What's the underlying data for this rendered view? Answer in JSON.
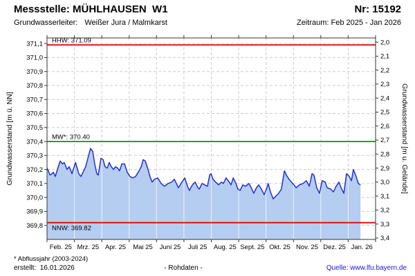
{
  "header": {
    "title": "Messstelle: MÜHLHAUSEN  W1",
    "station_number": "Nr: 15192",
    "aquifer_label": "Grundwasserleiter:",
    "aquifer_value": "Weißer Jura / Malmkarst",
    "period": "Zeitraum: Feb 2025 - Jan 2026"
  },
  "footer": {
    "footnote": "* Abflussjahr (2003-2024)",
    "created": "erstellt:  16.01.2026",
    "data_type": "- Rohdaten -",
    "source": "Quelle: www.lfu.bayern.de"
  },
  "colors": {
    "series_line": "#2230c8",
    "series_fill": "#b5cdf0",
    "hhw_nnw": "#e60000",
    "mw": "#009900",
    "grid": "#cccccc",
    "axis": "#333333",
    "link": "#1a16c8"
  },
  "chart_data": {
    "type": "area",
    "title": "",
    "x_unit": "months since 2025-02-01",
    "xlim": [
      0,
      12
    ],
    "x_tick_labels": [
      "Feb. 25",
      "Mrz. 25",
      "Apr. 25",
      "Mai 25",
      "Juni 25",
      "Juli 25",
      "Aug. 25",
      "Sept. 25",
      "Okt. 25",
      "Nov. 25",
      "Dez. 25",
      "Jan. 26"
    ],
    "left_axis": {
      "label": "Grundwasserstand [m ü. NN]",
      "tick_values": [
        371.1,
        371.0,
        370.9,
        370.8,
        370.7,
        370.6,
        370.5,
        370.4,
        370.3,
        370.2,
        370.1,
        370.0,
        369.9,
        369.8
      ],
      "tick_labels": [
        "371,1",
        "371,0",
        "370,9",
        "370,8",
        "370,7",
        "370,6",
        "370,5",
        "370,4",
        "370,3",
        "370,2",
        "370,1",
        "370,0",
        "369,9",
        "369,8"
      ],
      "range": [
        369.7,
        371.14
      ]
    },
    "right_axis": {
      "label": "Grundwasserstand [m u. Gelände]",
      "tick_values": [
        2.0,
        2.1,
        2.2,
        2.3,
        2.4,
        2.5,
        2.6,
        2.7,
        2.8,
        2.9,
        3.0,
        3.1,
        3.2,
        3.3,
        3.4
      ],
      "tick_labels": [
        "2,0",
        "2,1",
        "2,2",
        "2,3",
        "2,4",
        "2,5",
        "2,6",
        "2,7",
        "2,8",
        "2,9",
        "3,0",
        "3,1",
        "3,2",
        "3,3",
        "3,4"
      ],
      "ground_elevation": 373.11
    },
    "reference_lines": [
      {
        "name": "HHW",
        "label": "HHW: 371.09",
        "value": 371.09,
        "color_key": "hhw_nnw",
        "label_below": false
      },
      {
        "name": "MW",
        "label": "MW*: 370.40",
        "value": 370.4,
        "color_key": "mw",
        "label_below": false
      },
      {
        "name": "NNW",
        "label": "NNW: 369.82",
        "value": 369.82,
        "color_key": "hhw_nnw",
        "label_below": true
      }
    ],
    "series": [
      {
        "name": "Grundwasserstand (Rohdaten)",
        "points": [
          [
            0.0,
            370.21
          ],
          [
            0.05,
            370.19
          ],
          [
            0.1,
            370.16
          ],
          [
            0.18,
            370.17
          ],
          [
            0.23,
            370.18
          ],
          [
            0.3,
            370.15
          ],
          [
            0.38,
            370.2
          ],
          [
            0.48,
            370.26
          ],
          [
            0.56,
            370.24
          ],
          [
            0.63,
            370.25
          ],
          [
            0.73,
            370.2
          ],
          [
            0.81,
            370.22
          ],
          [
            0.91,
            370.17
          ],
          [
            1.04,
            370.25
          ],
          [
            1.16,
            370.17
          ],
          [
            1.24,
            370.15
          ],
          [
            1.34,
            370.19
          ],
          [
            1.41,
            370.22
          ],
          [
            1.49,
            370.28
          ],
          [
            1.59,
            370.35
          ],
          [
            1.67,
            370.33
          ],
          [
            1.74,
            370.24
          ],
          [
            1.82,
            370.17
          ],
          [
            1.87,
            370.16
          ],
          [
            1.97,
            370.28
          ],
          [
            2.05,
            370.27
          ],
          [
            2.12,
            370.22
          ],
          [
            2.2,
            370.21
          ],
          [
            2.27,
            370.25
          ],
          [
            2.35,
            370.22
          ],
          [
            2.43,
            370.2
          ],
          [
            2.5,
            370.22
          ],
          [
            2.58,
            370.21
          ],
          [
            2.65,
            370.19
          ],
          [
            2.73,
            370.24
          ],
          [
            2.83,
            370.24
          ],
          [
            2.93,
            370.18
          ],
          [
            3.03,
            370.15
          ],
          [
            3.13,
            370.14
          ],
          [
            3.23,
            370.15
          ],
          [
            3.33,
            370.18
          ],
          [
            3.44,
            370.22
          ],
          [
            3.51,
            370.27
          ],
          [
            3.59,
            370.26
          ],
          [
            3.69,
            370.2
          ],
          [
            3.76,
            370.15
          ],
          [
            3.84,
            370.11
          ],
          [
            3.92,
            370.13
          ],
          [
            4.04,
            370.14
          ],
          [
            4.17,
            370.1
          ],
          [
            4.29,
            370.08
          ],
          [
            4.42,
            370.1
          ],
          [
            4.55,
            370.11
          ],
          [
            4.65,
            370.13
          ],
          [
            4.8,
            370.07
          ],
          [
            4.93,
            370.11
          ],
          [
            5.03,
            370.14
          ],
          [
            5.13,
            370.08
          ],
          [
            5.2,
            370.05
          ],
          [
            5.31,
            370.09
          ],
          [
            5.41,
            370.11
          ],
          [
            5.51,
            370.07
          ],
          [
            5.56,
            370.06
          ],
          [
            5.66,
            370.1
          ],
          [
            5.76,
            370.09
          ],
          [
            5.86,
            370.08
          ],
          [
            5.94,
            370.16
          ],
          [
            5.99,
            370.17
          ],
          [
            6.06,
            370.13
          ],
          [
            6.16,
            370.11
          ],
          [
            6.27,
            370.09
          ],
          [
            6.37,
            370.11
          ],
          [
            6.44,
            370.1
          ],
          [
            6.54,
            370.14
          ],
          [
            6.62,
            370.12
          ],
          [
            6.72,
            370.09
          ],
          [
            6.8,
            370.14
          ],
          [
            6.9,
            370.1
          ],
          [
            6.97,
            370.06
          ],
          [
            7.05,
            370.05
          ],
          [
            7.15,
            370.09
          ],
          [
            7.25,
            370.08
          ],
          [
            7.38,
            370.1
          ],
          [
            7.48,
            370.06
          ],
          [
            7.55,
            370.03
          ],
          [
            7.65,
            370.07
          ],
          [
            7.73,
            370.09
          ],
          [
            7.83,
            370.06
          ],
          [
            7.93,
            370.02
          ],
          [
            8.01,
            370.06
          ],
          [
            8.08,
            370.1
          ],
          [
            8.16,
            370.04
          ],
          [
            8.26,
            369.99
          ],
          [
            8.36,
            370.01
          ],
          [
            8.46,
            370.03
          ],
          [
            8.56,
            370.06
          ],
          [
            8.67,
            370.19
          ],
          [
            8.74,
            370.16
          ],
          [
            8.84,
            370.13
          ],
          [
            8.97,
            370.1
          ],
          [
            9.1,
            370.07
          ],
          [
            9.22,
            370.09
          ],
          [
            9.35,
            370.1
          ],
          [
            9.47,
            370.12
          ],
          [
            9.58,
            370.08
          ],
          [
            9.68,
            370.17
          ],
          [
            9.75,
            370.16
          ],
          [
            9.85,
            370.07
          ],
          [
            9.95,
            370.03
          ],
          [
            10.05,
            370.12
          ],
          [
            10.16,
            370.11
          ],
          [
            10.23,
            370.07
          ],
          [
            10.36,
            370.06
          ],
          [
            10.46,
            370.04
          ],
          [
            10.56,
            370.08
          ],
          [
            10.66,
            370.11
          ],
          [
            10.74,
            370.07
          ],
          [
            10.84,
            370.03
          ],
          [
            10.94,
            370.17
          ],
          [
            11.04,
            370.15
          ],
          [
            11.12,
            370.12
          ],
          [
            11.19,
            370.2
          ],
          [
            11.29,
            370.15
          ],
          [
            11.37,
            370.1
          ],
          [
            11.45,
            370.09
          ]
        ]
      }
    ]
  }
}
